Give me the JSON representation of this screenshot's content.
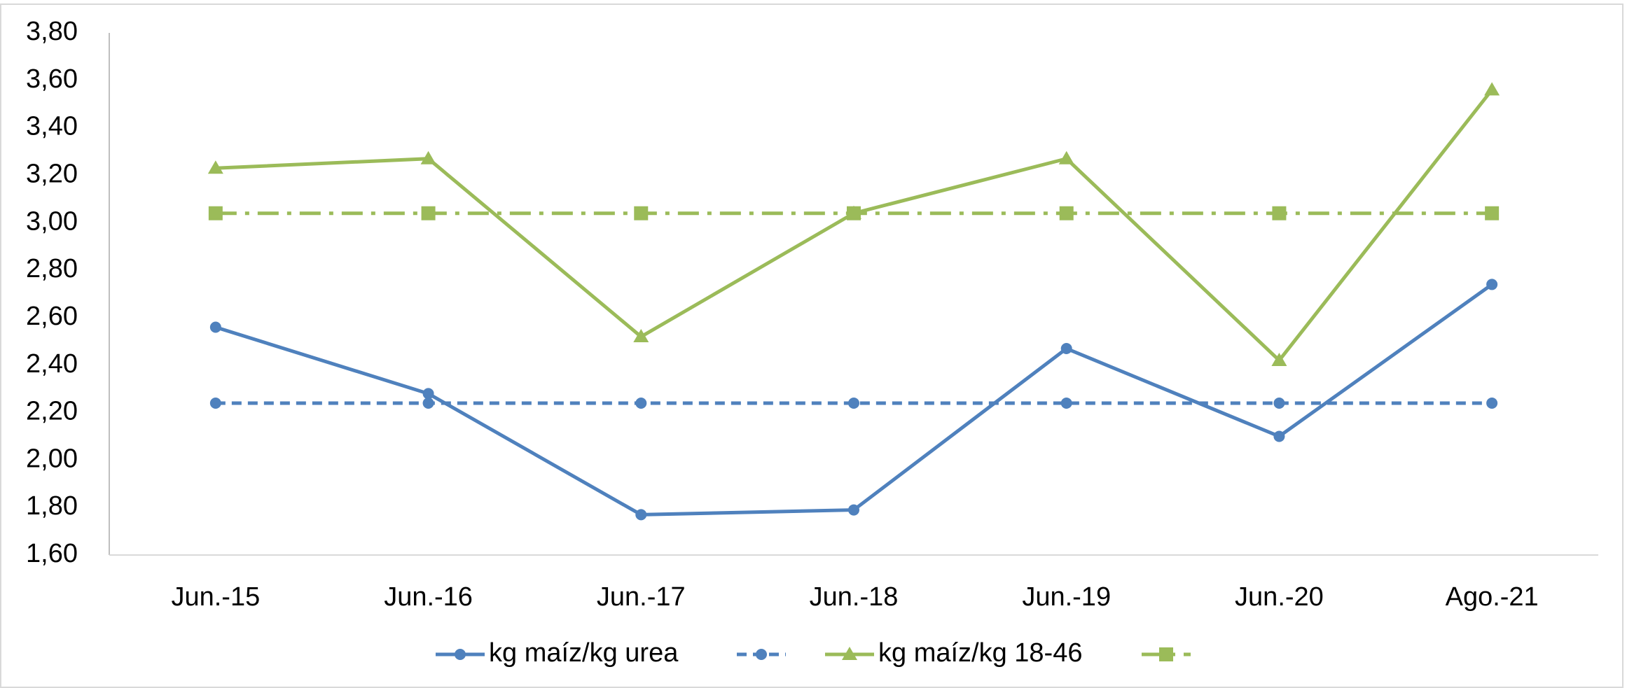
{
  "chart_data": {
    "type": "line",
    "categories": [
      "Jun.-15",
      "Jun.-16",
      "Jun.-17",
      "Jun.-18",
      "Jun.-19",
      "Jun.-20",
      "Ago.-21"
    ],
    "series": [
      {
        "name": "kg maíz/kg urea",
        "color": "#4f81bd",
        "line_style": "solid",
        "marker": "circle",
        "values": [
          2.56,
          2.28,
          1.77,
          1.79,
          2.47,
          2.1,
          2.74
        ]
      },
      {
        "color": "#4f81bd",
        "line_style": "dashed",
        "marker": "circle",
        "values": [
          2.24,
          2.24,
          2.24,
          2.24,
          2.24,
          2.24,
          2.24
        ]
      },
      {
        "name": "kg maíz/kg 18-46",
        "color": "#9bbb59",
        "line_style": "solid",
        "marker": "triangle",
        "values": [
          3.23,
          3.27,
          2.52,
          3.04,
          3.27,
          2.42,
          3.56
        ]
      },
      {
        "color": "#9bbb59",
        "line_style": "dashdot",
        "marker": "square",
        "values": [
          3.04,
          3.04,
          3.04,
          3.04,
          3.04,
          3.04,
          3.04
        ]
      }
    ],
    "ylim": [
      1.6,
      3.8
    ],
    "yticks": [
      {
        "value": 1.6,
        "label": "1,60"
      },
      {
        "value": 1.8,
        "label": "1,80"
      },
      {
        "value": 2.0,
        "label": "2,00"
      },
      {
        "value": 2.2,
        "label": "2,20"
      },
      {
        "value": 2.4,
        "label": "2,40"
      },
      {
        "value": 2.6,
        "label": "2,60"
      },
      {
        "value": 2.8,
        "label": "2,80"
      },
      {
        "value": 3.0,
        "label": "3,00"
      },
      {
        "value": 3.2,
        "label": "3,20"
      },
      {
        "value": 3.4,
        "label": "3,40"
      },
      {
        "value": 3.6,
        "label": "3,60"
      },
      {
        "value": 3.8,
        "label": "3,80"
      }
    ],
    "grid": false,
    "legend": "bottom"
  }
}
